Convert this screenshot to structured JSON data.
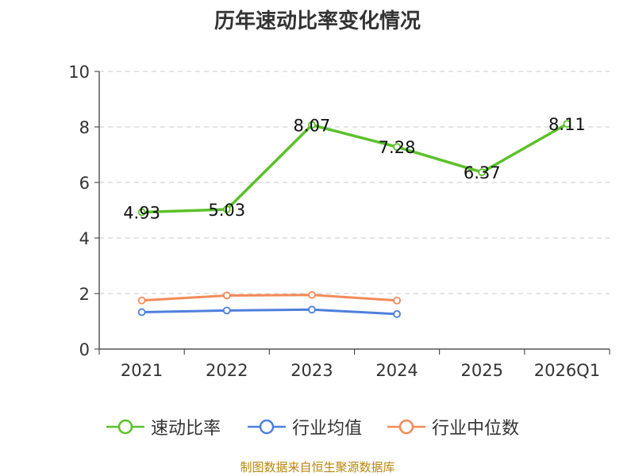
{
  "chart_data": {
    "type": "line",
    "title": "历年速动比率变化情况",
    "categories": [
      "2021",
      "2022",
      "2023",
      "2024",
      "2025",
      "2026Q1"
    ],
    "ylim": [
      0,
      10
    ],
    "yticks": [
      0,
      2,
      4,
      6,
      8,
      10
    ],
    "grid": true,
    "legend_position": "bottom",
    "series": [
      {
        "name": "速动比率",
        "color": "#5bc12a",
        "values": [
          4.93,
          5.03,
          8.07,
          7.28,
          6.37,
          8.11
        ],
        "labels": [
          "4.93",
          "5.03",
          "8.07",
          "7.28",
          "6.37",
          "8.11"
        ]
      },
      {
        "name": "行业均值",
        "color": "#4e7fdc",
        "values": [
          1.33,
          1.39,
          1.42,
          1.26,
          null,
          null
        ]
      },
      {
        "name": "行业中位数",
        "color": "#f28a58",
        "values": [
          1.75,
          1.93,
          1.95,
          1.75,
          null,
          null
        ]
      }
    ]
  },
  "source": "制图数据来自恒生聚源数据库"
}
